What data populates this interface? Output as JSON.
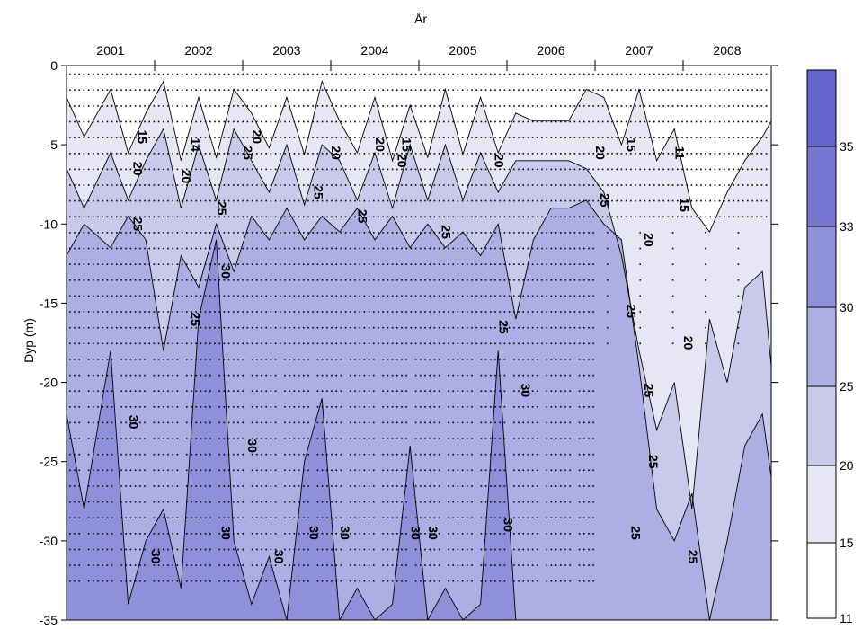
{
  "chart_data": {
    "type": "contour",
    "title": "",
    "x_title": "År",
    "ylabel": "Dyp (m)",
    "years": [
      "2001",
      "2002",
      "2003",
      "2004",
      "2005",
      "2006",
      "2007",
      "2008"
    ],
    "x_range": [
      2000.5,
      2008.5
    ],
    "y_ticks": [
      0,
      -5,
      -10,
      -15,
      -20,
      -25,
      -30,
      -35
    ],
    "ylim": [
      -35,
      0
    ],
    "levels": [
      11,
      15,
      20,
      25,
      30,
      33,
      35
    ],
    "fill_colors": [
      "#ffffff",
      "#e6e6f5",
      "#c9c9ec",
      "#adaee3",
      "#8f90da",
      "#7677d2",
      "#6465cc"
    ],
    "colorbar_labels": [
      "11",
      "15",
      "20",
      "25",
      "30",
      "33",
      "35"
    ],
    "contour_lines": [
      {
        "value": 15,
        "x": [
          2000.5,
          2000.7,
          2001,
          2001.2,
          2001.4,
          2001.6,
          2001.8,
          2002,
          2002.2,
          2002.4,
          2002.6,
          2002.8,
          2003,
          2003.2,
          2003.4,
          2003.6,
          2003.8,
          2004,
          2004.2,
          2004.4,
          2004.6,
          2004.8,
          2005,
          2005.2,
          2005.4,
          2005.6,
          2005.8,
          2006,
          2006.2,
          2006.4,
          2006.6,
          2006.8,
          2007,
          2007.2,
          2007.4,
          2007.6,
          2007.8,
          2008,
          2008.2,
          2008.4,
          2008.5
        ],
        "y": [
          -2,
          -4.5,
          -1.5,
          -5.5,
          -3,
          -1,
          -6,
          -2,
          -5.8,
          -1.5,
          -3,
          -5.2,
          -2,
          -5.6,
          -1,
          -3.5,
          -5.5,
          -2,
          -6,
          -2.5,
          -5.8,
          -1.5,
          -5.6,
          -2,
          -5.5,
          -3,
          -3.5,
          -3.5,
          -3.5,
          -1.5,
          -2,
          -5,
          -1.5,
          -6,
          -4,
          -9,
          -10.5,
          -8,
          -6,
          -4.5,
          -3.5
        ]
      },
      {
        "value": 20,
        "x": [
          2000.5,
          2000.7,
          2001,
          2001.2,
          2001.4,
          2001.6,
          2001.8,
          2002,
          2002.2,
          2002.4,
          2002.6,
          2002.8,
          2003,
          2003.2,
          2003.4,
          2003.6,
          2003.8,
          2004,
          2004.2,
          2004.4,
          2004.6,
          2004.8,
          2005,
          2005.2,
          2005.4,
          2005.6,
          2005.8,
          2006,
          2006.2,
          2006.4,
          2006.6,
          2006.8,
          2007,
          2007.2,
          2007.4,
          2007.6,
          2007.8,
          2008,
          2008.2,
          2008.4,
          2008.5
        ],
        "y": [
          -6.5,
          -9,
          -5.5,
          -8.5,
          -6,
          -4,
          -9,
          -5,
          -8.5,
          -4,
          -6,
          -8,
          -5,
          -8.8,
          -5,
          -6,
          -8.5,
          -5.5,
          -9,
          -5,
          -8.5,
          -5,
          -8.5,
          -5.5,
          -8,
          -6,
          -6,
          -6,
          -6,
          -6.5,
          -8,
          -12,
          -18,
          -23,
          -20,
          -28,
          -16,
          -20,
          -14,
          -13,
          -19
        ]
      },
      {
        "value": 25,
        "x": [
          2000.5,
          2000.7,
          2001,
          2001.2,
          2001.4,
          2001.6,
          2001.8,
          2002,
          2002.2,
          2002.4,
          2002.6,
          2002.8,
          2003,
          2003.2,
          2003.4,
          2003.6,
          2003.8,
          2004,
          2004.2,
          2004.4,
          2004.6,
          2004.8,
          2005,
          2005.2,
          2005.4,
          2005.6,
          2005.8,
          2006,
          2006.2,
          2006.4,
          2006.6,
          2006.8,
          2007,
          2007.2,
          2007.4,
          2007.6,
          2007.8,
          2008,
          2008.2,
          2008.4,
          2008.5
        ],
        "y": [
          -12,
          -10,
          -11.5,
          -9.5,
          -11,
          -18,
          -12,
          -14,
          -10,
          -13,
          -9.5,
          -11,
          -9,
          -11,
          -9.5,
          -10.5,
          -9,
          -11,
          -9.5,
          -11.5,
          -10,
          -11.5,
          -10.5,
          -12,
          -10,
          -16,
          -11,
          -9,
          -9,
          -8.5,
          -10,
          -11,
          -19,
          -28,
          -30,
          -27,
          -35,
          -30,
          -24,
          -22,
          -26
        ]
      },
      {
        "value": 30,
        "x": [
          2000.5,
          2000.7,
          2001,
          2001.2,
          2001.4,
          2001.6,
          2001.8,
          2002,
          2002.2,
          2002.4,
          2002.6,
          2002.8,
          2003,
          2003.2,
          2003.4,
          2003.6,
          2003.8,
          2004,
          2004.2,
          2004.4,
          2004.6,
          2004.8,
          2005,
          2005.2,
          2005.4,
          2005.6,
          2005.8,
          2006,
          2006.2,
          2006.4,
          2006.6,
          2006.8,
          2007,
          2007.2,
          2007.4,
          2007.6,
          2007.8,
          2008,
          2008.2,
          2008.4,
          2008.5
        ],
        "y": [
          -22,
          -28,
          -18,
          -34,
          -30,
          -28,
          -33,
          -16,
          -11,
          -30,
          -34,
          -31,
          -35,
          -25,
          -21,
          -35,
          -33,
          -35,
          -34,
          -24,
          -35,
          -33,
          -35,
          -34,
          -18,
          -35,
          -35,
          -35,
          -35,
          -35,
          -35,
          -35,
          -35,
          -35,
          -35,
          -35,
          -35,
          -35,
          -35,
          -35,
          -35
        ]
      }
    ],
    "line_labels": [
      {
        "text": "15",
        "x": 2001.35,
        "y": -4.5
      },
      {
        "text": "20",
        "x": 2001.3,
        "y": -6.5
      },
      {
        "text": "25",
        "x": 2001.3,
        "y": -10
      },
      {
        "text": "14",
        "x": 2001.95,
        "y": -5
      },
      {
        "text": "20",
        "x": 2001.85,
        "y": -7
      },
      {
        "text": "25",
        "x": 2002.25,
        "y": -9
      },
      {
        "text": "20",
        "x": 2002.65,
        "y": -4.5
      },
      {
        "text": "25",
        "x": 2002.55,
        "y": -5.5
      },
      {
        "text": "30",
        "x": 2002.3,
        "y": -13
      },
      {
        "text": "25",
        "x": 2001.95,
        "y": -16
      },
      {
        "text": "25",
        "x": 2003.35,
        "y": -8
      },
      {
        "text": "20",
        "x": 2003.55,
        "y": -5.5
      },
      {
        "text": "20",
        "x": 2004.05,
        "y": -5
      },
      {
        "text": "15",
        "x": 2004.35,
        "y": -5
      },
      {
        "text": "20",
        "x": 2004.3,
        "y": -6
      },
      {
        "text": "25",
        "x": 2003.85,
        "y": -9.5
      },
      {
        "text": "25",
        "x": 2004.8,
        "y": -10.5
      },
      {
        "text": "20",
        "x": 2005.4,
        "y": -6
      },
      {
        "text": "20",
        "x": 2006.55,
        "y": -5.5
      },
      {
        "text": "15",
        "x": 2006.9,
        "y": -5
      },
      {
        "text": "11",
        "x": 2007.45,
        "y": -5.5
      },
      {
        "text": "25",
        "x": 2006.6,
        "y": -8.5
      },
      {
        "text": "15",
        "x": 2007.5,
        "y": -8.8
      },
      {
        "text": "20",
        "x": 2007.1,
        "y": -11
      },
      {
        "text": "25",
        "x": 2006.9,
        "y": -15.5
      },
      {
        "text": "20",
        "x": 2007.55,
        "y": -17.5
      },
      {
        "text": "25",
        "x": 2005.45,
        "y": -16.5
      },
      {
        "text": "30",
        "x": 2005.7,
        "y": -20.5
      },
      {
        "text": "25",
        "x": 2007.1,
        "y": -20.5
      },
      {
        "text": "25",
        "x": 2007.15,
        "y": -25
      },
      {
        "text": "30",
        "x": 2001.25,
        "y": -22.5
      },
      {
        "text": "30",
        "x": 2002.6,
        "y": -24
      },
      {
        "text": "30",
        "x": 2001.5,
        "y": -31
      },
      {
        "text": "30",
        "x": 2002.3,
        "y": -29.5
      },
      {
        "text": "30",
        "x": 2002.9,
        "y": -31
      },
      {
        "text": "30",
        "x": 2003.3,
        "y": -29.5
      },
      {
        "text": "30",
        "x": 2003.65,
        "y": -29.5
      },
      {
        "text": "30",
        "x": 2004.45,
        "y": -29.5
      },
      {
        "text": "30",
        "x": 2004.65,
        "y": -29.5
      },
      {
        "text": "30",
        "x": 2005.5,
        "y": -29
      },
      {
        "text": "25",
        "x": 2006.95,
        "y": -29.5
      },
      {
        "text": "25",
        "x": 2007.6,
        "y": -31
      }
    ]
  }
}
